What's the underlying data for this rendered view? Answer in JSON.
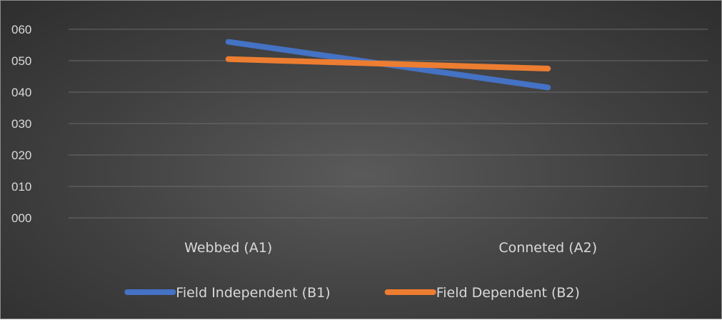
{
  "chart_data": {
    "type": "line",
    "categories": [
      "Webbed (A1)",
      "Conneted (A2)"
    ],
    "series": [
      {
        "name": "Field Independent (B1)",
        "values": [
          56,
          41.5
        ],
        "color": "#4472c4"
      },
      {
        "name": "Field Dependent (B2)",
        "values": [
          50.5,
          47.5
        ],
        "color": "#ed7d31"
      }
    ],
    "yticks": [
      "000",
      "010",
      "020",
      "030",
      "040",
      "050",
      "060"
    ],
    "ylim": [
      0,
      60
    ],
    "grid": true,
    "legend_position": "bottom"
  }
}
